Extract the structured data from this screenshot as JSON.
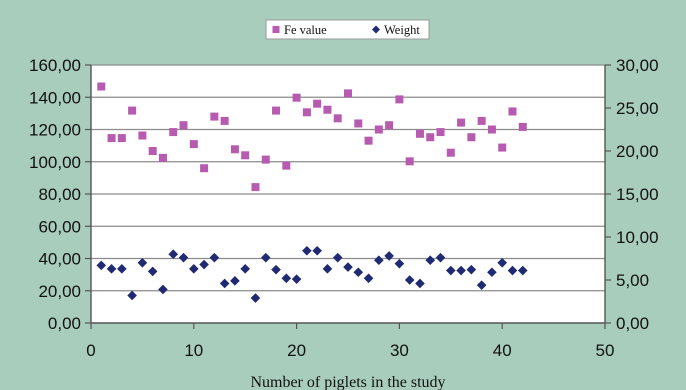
{
  "chart_data": {
    "type": "scatter",
    "title": "",
    "xlabel": "Number of piglets in the study",
    "ylabel": "",
    "y2label": "",
    "xlim": [
      0,
      50
    ],
    "ylim": [
      0,
      160
    ],
    "y2lim": [
      0,
      30
    ],
    "xticks": [
      0,
      10,
      20,
      30,
      40,
      50
    ],
    "xtick_labels": [
      "0",
      "10",
      "20",
      "30",
      "40",
      "50"
    ],
    "yticks": [
      0,
      20,
      40,
      60,
      80,
      100,
      120,
      140,
      160
    ],
    "ytick_labels": [
      "0,00",
      "20,00",
      "40,00",
      "60,00",
      "80,00",
      "100,00",
      "120,00",
      "140,00",
      "160,00"
    ],
    "y2ticks": [
      0,
      5,
      10,
      15,
      20,
      25,
      30
    ],
    "y2tick_labels": [
      "0,00",
      "5,00",
      "10,00",
      "15,00",
      "20,00",
      "25,00",
      "30,00"
    ],
    "grid": "horizontal",
    "legend_position": "top-center",
    "colors": {
      "background": "#a9cdbd",
      "plot": "#ffffff",
      "grid": "#999999"
    },
    "series": [
      {
        "name": "Fe value",
        "axis": "right",
        "marker": "square",
        "color": "#b65bb0",
        "x": [
          1,
          2,
          3,
          4,
          5,
          6,
          7,
          8,
          9,
          10,
          11,
          12,
          13,
          14,
          15,
          16,
          17,
          18,
          19,
          20,
          21,
          22,
          23,
          24,
          25,
          26,
          27,
          28,
          29,
          30,
          31,
          32,
          33,
          34,
          35,
          36,
          37,
          38,
          39,
          40,
          41,
          42
        ],
        "y": [
          27.5,
          21.5,
          21.5,
          24.7,
          21.8,
          20.0,
          19.2,
          22.2,
          23.0,
          20.8,
          18.0,
          24.0,
          23.5,
          20.2,
          19.5,
          15.8,
          19.0,
          24.7,
          18.3,
          26.2,
          24.5,
          25.5,
          24.8,
          23.8,
          26.7,
          23.2,
          21.2,
          22.5,
          23.0,
          26.0,
          18.8,
          22.0,
          21.6,
          22.2,
          19.8,
          23.3,
          21.6,
          23.5,
          22.5,
          20.4,
          24.6,
          22.8
        ]
      },
      {
        "name": "Weight",
        "axis": "right",
        "marker": "diamond",
        "color": "#1f2a72",
        "x": [
          1,
          2,
          3,
          4,
          5,
          6,
          7,
          8,
          9,
          10,
          11,
          12,
          13,
          14,
          15,
          16,
          17,
          18,
          19,
          20,
          21,
          22,
          23,
          24,
          25,
          26,
          27,
          28,
          29,
          30,
          31,
          32,
          33,
          34,
          35,
          36,
          37,
          38,
          39,
          40,
          41,
          42
        ],
        "y": [
          6.7,
          6.3,
          6.3,
          3.2,
          7.0,
          6.0,
          3.9,
          8.0,
          7.6,
          6.3,
          6.8,
          7.6,
          4.6,
          4.9,
          6.3,
          2.9,
          7.6,
          6.2,
          5.2,
          5.1,
          8.4,
          8.4,
          6.3,
          7.6,
          6.5,
          5.9,
          5.2,
          7.3,
          7.8,
          6.9,
          5.0,
          4.6,
          7.3,
          7.6,
          6.1,
          6.1,
          6.2,
          4.4,
          5.9,
          7.0,
          6.1,
          6.1
        ]
      }
    ]
  }
}
